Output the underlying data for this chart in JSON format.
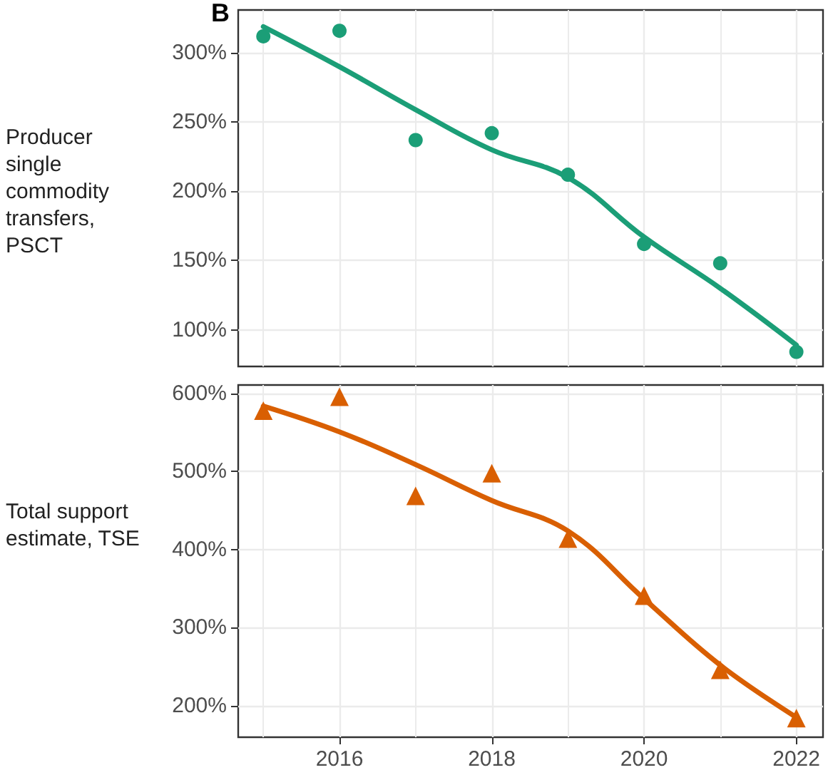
{
  "chart_data": [
    {
      "type": "scatter",
      "ylabel": "Producer single commodity transfers, PSCT",
      "annotations": [
        "B"
      ],
      "grid": true,
      "tick_labels": "y",
      "xlim": [
        2014.67,
        2022.35
      ],
      "xticks": [
        2016,
        2018,
        2020,
        2022
      ],
      "ylim": [
        73.5,
        331
      ],
      "yticks": [
        {
          "value": 100,
          "label": "100%"
        },
        {
          "value": 150,
          "label": "150%"
        },
        {
          "value": 200,
          "label": "200%"
        },
        {
          "value": 250,
          "label": "250%"
        },
        {
          "value": 300,
          "label": "300%"
        }
      ],
      "series": [
        {
          "color": "#1b9e77",
          "marker": "circle",
          "x": [
            2015,
            2016,
            2017,
            2018,
            2019,
            2020,
            2021,
            2022
          ],
          "values": [
            312,
            316,
            237,
            242,
            212,
            162,
            148,
            84
          ]
        },
        {
          "type": "line",
          "marker": "none",
          "color": "#1b9e77",
          "x": [
            2015,
            2016,
            2017,
            2018,
            2019,
            2020,
            2021,
            2022
          ],
          "values": [
            319,
            290,
            259,
            230,
            210,
            167,
            130,
            89
          ]
        }
      ]
    },
    {
      "type": "scatter",
      "ylabel": "Total support estimate, TSE",
      "grid": true,
      "xlim": [
        2014.67,
        2022.35
      ],
      "xticks": [
        2016,
        2018,
        2020,
        2022
      ],
      "ylim": [
        159.6,
        611
      ],
      "yticks": [
        {
          "value": 200,
          "label": "200%"
        },
        {
          "value": 300,
          "label": "300%"
        },
        {
          "value": 400,
          "label": "400%"
        },
        {
          "value": 500,
          "label": "500%"
        },
        {
          "value": 600,
          "label": "600%"
        }
      ],
      "series": [
        {
          "color": "#d95f02",
          "marker": "triangle",
          "x": [
            2015,
            2016,
            2017,
            2018,
            2019,
            2020,
            2021,
            2022
          ],
          "values": [
            578,
            596,
            469,
            498,
            414,
            341,
            246,
            184
          ]
        },
        {
          "type": "line",
          "marker": "none",
          "color": "#d95f02",
          "x": [
            2015,
            2016,
            2017,
            2018,
            2019,
            2020,
            2021,
            2022
          ],
          "values": [
            584,
            551,
            509,
            463,
            424,
            337,
            252,
            185
          ]
        }
      ]
    }
  ]
}
